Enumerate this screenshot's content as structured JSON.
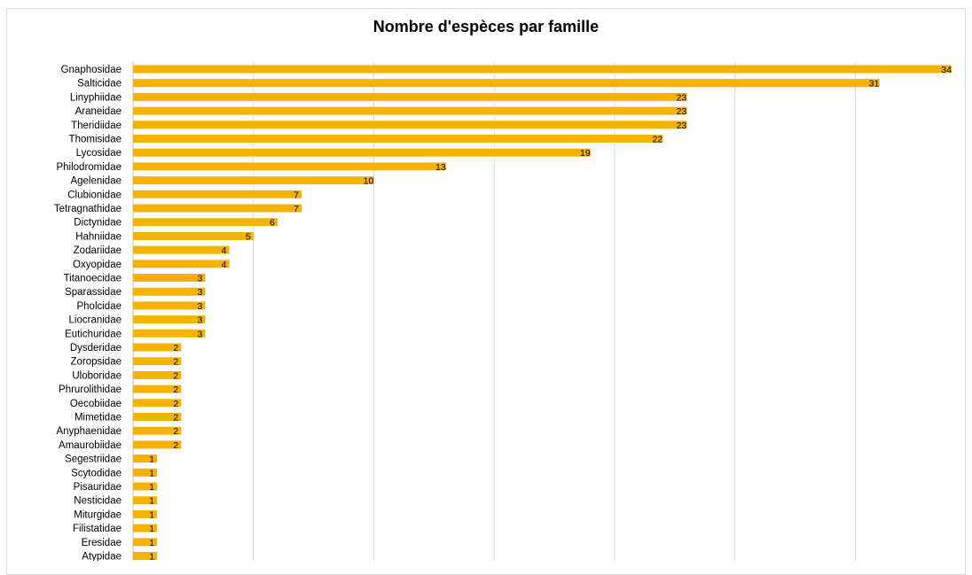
{
  "chart_data": {
    "type": "bar",
    "orientation": "horizontal",
    "title": "Nombre d'espèces par famille",
    "categories": [
      "Gnaphosidae",
      "Salticidae",
      "Linyphiidae",
      "Araneidae",
      "Theridiidae",
      "Thomisidae",
      "Lycosidae",
      "Philodromidae",
      "Agelenidae",
      "Clubionidae",
      "Tetragnathidae",
      "Dictynidae",
      "Hahniidae",
      "Zodariidae",
      "Oxyopidae",
      "Titanoecidae",
      "Sparassidae",
      "Pholcidae",
      "Liocranidae",
      "Eutichuridae",
      "Dysderidae",
      "Zoropsidae",
      "Uloboridae",
      "Phrurolithidae",
      "Oecobiidae",
      "Mimetidae",
      "Anyphaenidae",
      "Amaurobiidae",
      "Segestriidae",
      "Scytodidae",
      "Pisauridae",
      "Nesticidae",
      "Miturgidae",
      "Filistatidae",
      "Eresidae",
      "Atypidae"
    ],
    "values": [
      34,
      31,
      23,
      23,
      23,
      22,
      19,
      13,
      10,
      7,
      7,
      6,
      5,
      4,
      4,
      3,
      3,
      3,
      3,
      3,
      2,
      2,
      2,
      2,
      2,
      2,
      2,
      2,
      1,
      1,
      1,
      1,
      1,
      1,
      1,
      1
    ],
    "xlim": [
      0,
      35
    ],
    "grid": true,
    "bar_color": "#f5b301",
    "grid_color": "#d5dde5"
  }
}
